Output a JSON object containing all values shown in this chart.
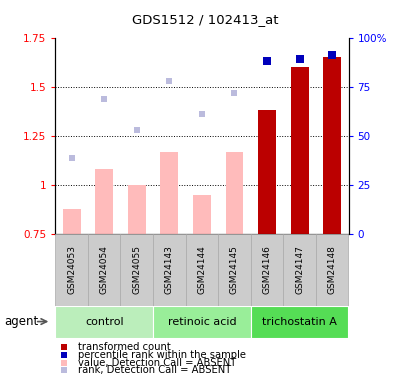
{
  "title": "GDS1512 / 102413_at",
  "samples": [
    "GSM24053",
    "GSM24054",
    "GSM24055",
    "GSM24143",
    "GSM24144",
    "GSM24145",
    "GSM24146",
    "GSM24147",
    "GSM24148"
  ],
  "bar_values": [
    0.88,
    1.08,
    1.0,
    1.17,
    0.95,
    1.17,
    1.38,
    1.6,
    1.65
  ],
  "bar_absent": [
    true,
    true,
    true,
    true,
    true,
    true,
    false,
    false,
    false
  ],
  "rank_values": [
    1.14,
    1.44,
    1.28,
    1.53,
    1.36,
    1.47,
    1.63,
    1.64,
    1.66
  ],
  "rank_absent": [
    true,
    true,
    true,
    true,
    true,
    true,
    false,
    false,
    false
  ],
  "ylim_left": [
    0.75,
    1.75
  ],
  "ylim_right": [
    0,
    100
  ],
  "yticks_left": [
    0.75,
    1.0,
    1.25,
    1.5,
    1.75
  ],
  "ytick_labels_left": [
    "0.75",
    "1",
    "1.25",
    "1.5",
    "1.75"
  ],
  "yticks_right": [
    0,
    25,
    50,
    75,
    100
  ],
  "ytick_labels_right": [
    "0",
    "25",
    "50",
    "75",
    "100%"
  ],
  "dotted_lines": [
    1.0,
    1.25,
    1.5
  ],
  "bar_color_absent": "#ffbbbb",
  "bar_color_present": "#bb0000",
  "rank_color_absent": "#bbbbdd",
  "rank_color_present": "#0000bb",
  "bar_width": 0.55,
  "sample_box_color": "#cccccc",
  "sample_box_edge": "#aaaaaa",
  "group_colors": [
    "#bbeebb",
    "#99ee99",
    "#55dd55"
  ],
  "group_names": [
    "control",
    "retinoic acid",
    "trichostatin A"
  ],
  "group_ranges": [
    [
      0,
      2
    ],
    [
      3,
      5
    ],
    [
      6,
      8
    ]
  ],
  "agent_label": "agent",
  "legend_items": [
    {
      "color": "#bb0000",
      "label": "transformed count"
    },
    {
      "color": "#0000bb",
      "label": "percentile rank within the sample"
    },
    {
      "color": "#ffbbbb",
      "label": "value, Detection Call = ABSENT"
    },
    {
      "color": "#bbbbdd",
      "label": "rank, Detection Call = ABSENT"
    }
  ]
}
